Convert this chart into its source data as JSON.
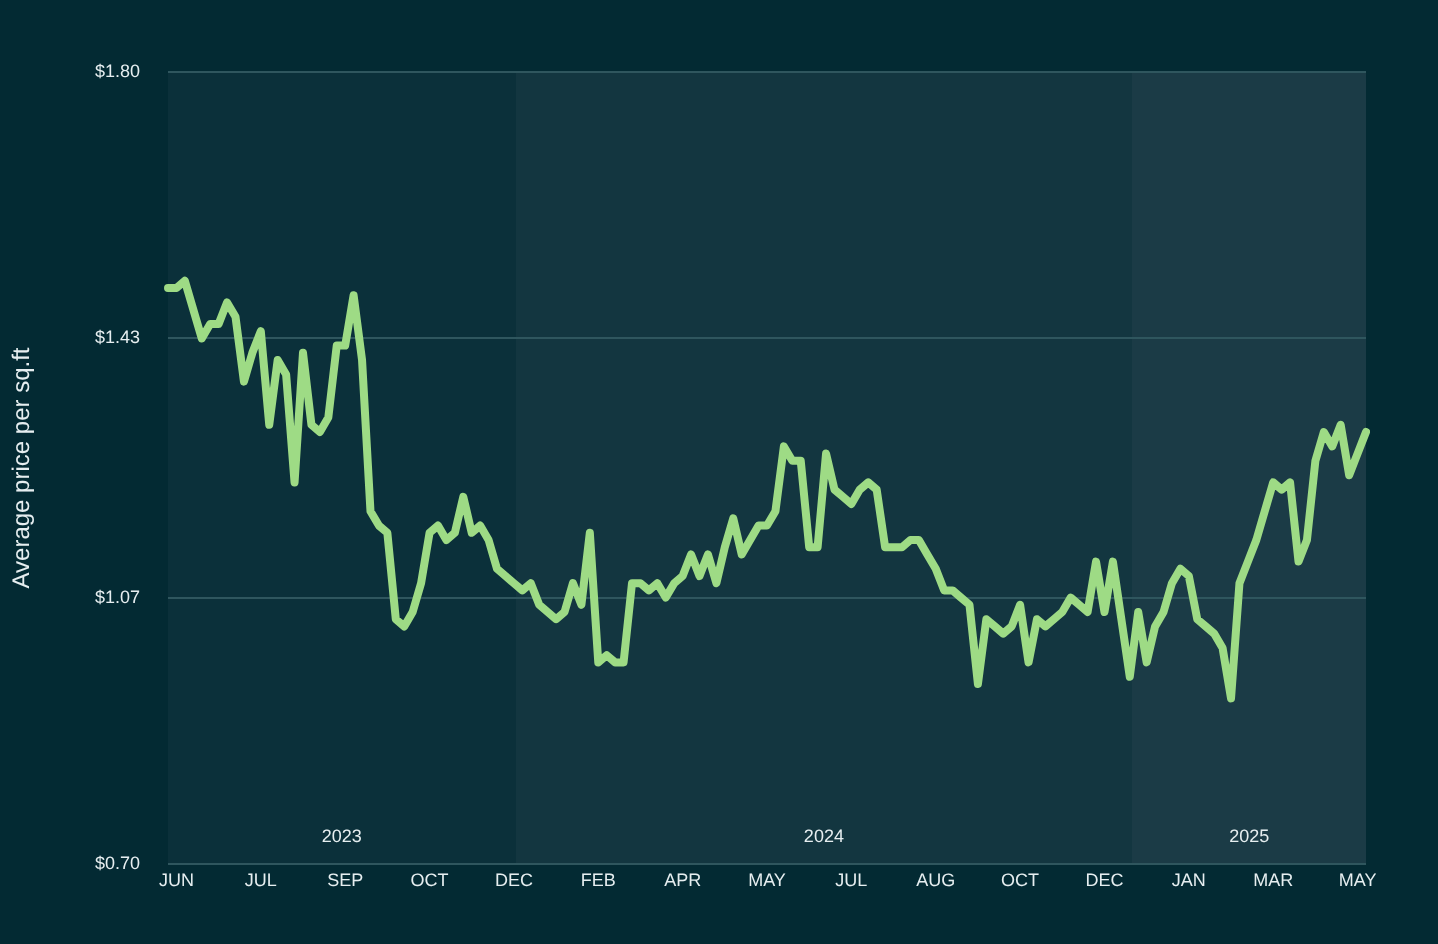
{
  "chart_data": {
    "type": "line",
    "ylabel": "Average price per sq.ft",
    "annotations": [
      "2023",
      "2024",
      "2025"
    ],
    "categories": [
      null,
      "JUN",
      null,
      null,
      null,
      null,
      null,
      null,
      null,
      null,
      null,
      "JUL",
      null,
      null,
      null,
      null,
      null,
      null,
      null,
      null,
      null,
      "SEP",
      null,
      null,
      null,
      null,
      null,
      null,
      null,
      null,
      null,
      "OCT",
      null,
      null,
      null,
      null,
      null,
      null,
      null,
      null,
      null,
      "DEC",
      null,
      null,
      null,
      null,
      null,
      null,
      null,
      null,
      null,
      "FEB",
      null,
      null,
      null,
      null,
      null,
      null,
      null,
      null,
      null,
      "APR",
      null,
      null,
      null,
      null,
      null,
      null,
      null,
      null,
      null,
      "MAY",
      null,
      null,
      null,
      null,
      null,
      null,
      null,
      null,
      null,
      "JUL",
      null,
      null,
      null,
      null,
      null,
      null,
      null,
      null,
      null,
      "AUG",
      null,
      null,
      null,
      null,
      null,
      null,
      null,
      null,
      null,
      "OCT",
      null,
      null,
      null,
      null,
      null,
      null,
      null,
      null,
      null,
      "DEC",
      null,
      null,
      null,
      null,
      null,
      null,
      null,
      null,
      null,
      "JAN",
      null,
      null,
      null,
      null,
      null,
      null,
      null,
      null,
      null,
      "MAR",
      null,
      null,
      null,
      null,
      null,
      null,
      null,
      null,
      null,
      "MAY",
      null
    ],
    "ylim": [
      0.7,
      1.8
    ],
    "yticks": [
      {
        "value": 0.7,
        "label": "$0.70"
      },
      {
        "value": 1.07,
        "label": "$1.07"
      },
      {
        "value": 1.43,
        "label": "$1.43"
      },
      {
        "value": 1.8,
        "label": "$1.80"
      }
    ],
    "grid": "y",
    "legend": false,
    "marker": "none",
    "line_style": "solid",
    "series": [
      {
        "color": "#9edb85",
        "values": [
          1.5,
          1.5,
          1.51,
          1.47,
          1.43,
          1.45,
          1.45,
          1.48,
          1.46,
          1.37,
          1.41,
          1.44,
          1.31,
          1.4,
          1.38,
          1.23,
          1.41,
          1.31,
          1.3,
          1.32,
          1.42,
          1.42,
          1.49,
          1.4,
          1.19,
          1.17,
          1.16,
          1.04,
          1.03,
          1.05,
          1.09,
          1.16,
          1.17,
          1.15,
          1.16,
          1.21,
          1.16,
          1.17,
          1.15,
          1.11,
          1.1,
          1.09,
          1.08,
          1.09,
          1.06,
          1.05,
          1.04,
          1.05,
          1.09,
          1.06,
          1.16,
          0.98,
          0.99,
          0.98,
          0.98,
          1.09,
          1.09,
          1.08,
          1.09,
          1.07,
          1.09,
          1.1,
          1.13,
          1.1,
          1.13,
          1.09,
          1.14,
          1.18,
          1.13,
          1.15,
          1.17,
          1.17,
          1.19,
          1.28,
          1.26,
          1.26,
          1.14,
          1.14,
          1.27,
          1.22,
          1.21,
          1.2,
          1.22,
          1.23,
          1.22,
          1.14,
          1.14,
          1.14,
          1.15,
          1.15,
          1.13,
          1.11,
          1.08,
          1.08,
          1.07,
          1.06,
          0.95,
          1.04,
          1.03,
          1.02,
          1.03,
          1.06,
          0.98,
          1.04,
          1.03,
          1.04,
          1.05,
          1.07,
          1.06,
          1.05,
          1.12,
          1.05,
          1.12,
          1.04,
          0.96,
          1.05,
          0.98,
          1.03,
          1.05,
          1.09,
          1.11,
          1.1,
          1.04,
          1.03,
          1.02,
          1.0,
          0.93,
          1.09,
          1.12,
          1.15,
          1.19,
          1.23,
          1.22,
          1.23,
          1.12,
          1.15,
          1.26,
          1.3,
          1.28,
          1.31,
          1.24,
          1.27,
          1.3
        ]
      }
    ]
  }
}
